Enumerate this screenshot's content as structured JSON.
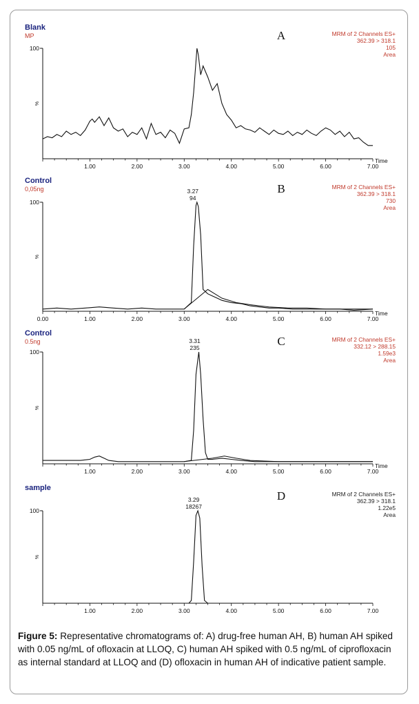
{
  "chart_data": [
    {
      "type": "line",
      "panel_letter": "A",
      "title": "Blank",
      "subtitle": "MP",
      "title_color": "#1a237e",
      "subtitle_color": "#c0392b",
      "info_lines": [
        "MRM of 2 Channels ES+",
        "362.39 > 318.1",
        "105",
        "Area"
      ],
      "info_color": "#c0392b",
      "xlabel": "Time",
      "ylabel": "%",
      "xlim": [
        0.0,
        7.0
      ],
      "ylim": [
        0,
        100
      ],
      "x_ticks": [
        "1.00",
        "2.00",
        "3.00",
        "4.00",
        "5.00",
        "6.00",
        "7.00"
      ],
      "y_ticks": [
        "100"
      ],
      "peak_label": [],
      "x": [
        0.0,
        0.1,
        0.2,
        0.3,
        0.4,
        0.5,
        0.6,
        0.7,
        0.8,
        0.9,
        1.0,
        1.05,
        1.1,
        1.2,
        1.3,
        1.4,
        1.5,
        1.6,
        1.7,
        1.8,
        1.9,
        2.0,
        2.1,
        2.2,
        2.3,
        2.4,
        2.5,
        2.6,
        2.7,
        2.8,
        2.9,
        3.0,
        3.1,
        3.15,
        3.2,
        3.27,
        3.3,
        3.35,
        3.4,
        3.5,
        3.6,
        3.7,
        3.8,
        3.9,
        4.0,
        4.1,
        4.2,
        4.3,
        4.4,
        4.5,
        4.6,
        4.7,
        4.8,
        4.9,
        5.0,
        5.1,
        5.2,
        5.3,
        5.4,
        5.5,
        5.6,
        5.7,
        5.8,
        5.9,
        6.0,
        6.1,
        6.2,
        6.3,
        6.4,
        6.5,
        6.6,
        6.7,
        6.8,
        6.9,
        7.0
      ],
      "values": [
        18,
        20,
        19,
        22,
        20,
        25,
        22,
        24,
        21,
        26,
        34,
        36,
        33,
        38,
        30,
        37,
        28,
        25,
        27,
        20,
        24,
        22,
        28,
        18,
        32,
        22,
        24,
        19,
        26,
        23,
        14,
        27,
        28,
        40,
        60,
        100,
        94,
        76,
        84,
        74,
        62,
        68,
        50,
        40,
        35,
        28,
        30,
        27,
        26,
        24,
        28,
        25,
        22,
        26,
        23,
        22,
        25,
        21,
        24,
        22,
        26,
        23,
        21,
        25,
        28,
        26,
        22,
        25,
        20,
        24,
        18,
        19,
        15,
        12,
        12
      ],
      "secondary_x": [],
      "secondary_values": []
    },
    {
      "type": "line",
      "panel_letter": "B",
      "title": "Control",
      "subtitle": "0,05ng",
      "title_color": "#1a237e",
      "subtitle_color": "#c0392b",
      "info_lines": [
        "MRM of 2 Channels ES+",
        "362.39 > 318.1",
        "730",
        "Area"
      ],
      "info_color": "#c0392b",
      "xlabel": "Time",
      "ylabel": "%",
      "xlim": [
        0.0,
        7.0
      ],
      "ylim": [
        0,
        100
      ],
      "x_ticks": [
        "0.00",
        "1.00",
        "2.00",
        "3.00",
        "4.00",
        "5.00",
        "6.00",
        "7.00"
      ],
      "y_ticks": [
        "100"
      ],
      "peak_label": [
        "3.27",
        "94"
      ],
      "x": [
        0.0,
        0.3,
        0.6,
        0.9,
        1.2,
        1.5,
        1.8,
        2.1,
        2.4,
        2.7,
        3.0,
        3.15,
        3.2,
        3.25,
        3.27,
        3.3,
        3.35,
        3.4,
        3.5,
        3.6,
        3.7,
        3.8,
        3.9,
        4.0,
        4.2,
        4.4,
        4.6,
        4.8,
        5.0,
        5.3,
        5.6,
        6.0,
        6.3,
        6.6,
        7.0
      ],
      "values": [
        2,
        3,
        2,
        3,
        4,
        3,
        2,
        3,
        2,
        2,
        2,
        8,
        60,
        97,
        100,
        96,
        70,
        20,
        16,
        14,
        12,
        10,
        9,
        8,
        7,
        5,
        4,
        3,
        3,
        2,
        2,
        2,
        2,
        1,
        2
      ],
      "secondary_x": [
        3.0,
        3.5,
        3.8,
        4.1,
        4.4,
        4.8,
        5.2,
        5.6,
        6.0,
        6.5,
        7.0
      ],
      "secondary_values": [
        2,
        20,
        12,
        8,
        6,
        4,
        3,
        3,
        2,
        2,
        2
      ]
    },
    {
      "type": "line",
      "panel_letter": "C",
      "title": "Control",
      "subtitle": "0.5ng",
      "title_color": "#1a237e",
      "subtitle_color": "#c0392b",
      "info_lines": [
        "MRM of 2 Channels ES+",
        "332.12 > 288.15",
        "1.59e3",
        "Area"
      ],
      "info_color": "#c0392b",
      "xlabel": "Time",
      "ylabel": "%",
      "xlim": [
        0.0,
        7.0
      ],
      "ylim": [
        0,
        100
      ],
      "x_ticks": [
        "1.00",
        "2.00",
        "3.00",
        "4.00",
        "5.00",
        "6.00",
        "7.00"
      ],
      "y_ticks": [
        "100"
      ],
      "peak_label": [
        "3.31",
        "235"
      ],
      "x": [
        0.0,
        0.4,
        0.8,
        1.0,
        1.1,
        1.2,
        1.3,
        1.4,
        1.6,
        2.0,
        2.5,
        3.0,
        3.15,
        3.2,
        3.25,
        3.31,
        3.35,
        3.4,
        3.45,
        3.5,
        3.6,
        3.8,
        4.0,
        4.2,
        4.5,
        5.0,
        5.5,
        6.0,
        6.5,
        7.0
      ],
      "values": [
        3,
        3,
        3,
        4,
        6,
        7,
        5,
        3,
        2,
        2,
        2,
        2,
        3,
        30,
        80,
        100,
        80,
        40,
        10,
        4,
        4,
        5,
        4,
        3,
        2,
        2,
        2,
        2,
        2,
        2
      ],
      "secondary_x": [
        3.0,
        3.6,
        3.85,
        4.1,
        4.4,
        5.0,
        6.0,
        7.0
      ],
      "secondary_values": [
        2,
        5,
        7,
        5,
        3,
        2,
        2,
        2
      ]
    },
    {
      "type": "line",
      "panel_letter": "D",
      "title": "sample",
      "subtitle": "",
      "title_color": "#1a237e",
      "subtitle_color": "#c0392b",
      "info_lines": [
        "MRM of 2 Channels ES+",
        "362.39 > 318.1",
        "1.22e5",
        "Area"
      ],
      "info_color": "#222222",
      "xlabel": "",
      "ylabel": "%",
      "xlim": [
        0.0,
        7.0
      ],
      "ylim": [
        0,
        100
      ],
      "x_ticks": [
        "1.00",
        "2.00",
        "3.00",
        "4.00",
        "5.00",
        "6.00",
        "7.00"
      ],
      "y_ticks": [
        "100"
      ],
      "peak_label": [
        "3.29",
        "18267"
      ],
      "x": [
        0.0,
        1.0,
        2.0,
        3.0,
        3.1,
        3.15,
        3.2,
        3.25,
        3.29,
        3.33,
        3.38,
        3.43,
        3.5,
        4.0,
        5.0,
        6.0,
        7.0
      ],
      "values": [
        0,
        0,
        0,
        0,
        0,
        3,
        45,
        95,
        100,
        92,
        40,
        3,
        0,
        0,
        0,
        0,
        0
      ],
      "secondary_x": [],
      "secondary_values": []
    }
  ],
  "caption": {
    "label": "Figure 5:",
    "text": "Representative chromatograms of: A) drug-free human AH, B) human AH spiked with 0.05 ng/mL of ofloxacin at LLOQ, C) human AH spiked with 0.5 ng/mL of ciprofloxacin as internal standard at LLOQ and (D) ofloxacin in human AH of indicative patient sample."
  }
}
